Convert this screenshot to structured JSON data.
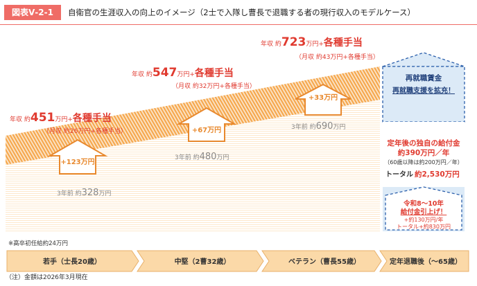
{
  "header": {
    "tag": "図表Ⅴ-2-1",
    "title": "自衛官の生涯収入の向上のイメージ（2士で入隊し曹長で退職する者の現行収入のモデルケース）"
  },
  "stages": [
    {
      "annual_prefix": "年収 約",
      "annual_value": "451",
      "annual_unit": "万円+",
      "allowance": "各種手当",
      "monthly": "（月収 約26万円+各種手当）",
      "increase": "+123万円",
      "prev_label": "3年前 約",
      "prev_value": "328",
      "prev_unit": "万円"
    },
    {
      "annual_prefix": "年収 約",
      "annual_value": "547",
      "annual_unit": "万円+",
      "allowance": "各種手当",
      "monthly": "（月収 約32万円+各種手当）",
      "increase": "+67万円",
      "prev_label": "3年前 約",
      "prev_value": "480",
      "prev_unit": "万円"
    },
    {
      "annual_prefix": "年収 約",
      "annual_value": "723",
      "annual_unit": "万円+",
      "allowance": "各種手当",
      "monthly": "（月収 約43万円+各種手当）",
      "increase": "+33万円",
      "prev_label": "3年前 約",
      "prev_value": "690",
      "prev_unit": "万円"
    }
  ],
  "retire_panel": {
    "line1": "再就職賃金",
    "line2": "再就職支援を拡充！",
    "benefit_title": "定年後の独自の給付金",
    "benefit_amount": "約390万円／年",
    "benefit_sub": "（60歳以降は約200万円／年）",
    "total_label": "トータル",
    "total_value": "約2,530万円",
    "reiwa_line1": "令和8～10年",
    "reiwa_line2": "給付金引上げ！",
    "reiwa_line3": "+約130万円/年",
    "reiwa_line4": "トータル+約830万円"
  },
  "start_note": "※高卒初任給約24万円",
  "timeline": [
    "若手（士長20歳）",
    "中堅（2曹32歳）",
    "ベテラン（曹長55歳）",
    "定年退職後（～65歳）"
  ],
  "footnote": "（注）金額は2026年3月現在",
  "colors": {
    "accent": "#ef6c66",
    "red_text": "#e03a2f",
    "orange": "#f5a64a",
    "orange_dark": "#e8892e",
    "blue": "#2b5fab",
    "light_blue": "#dceaf7"
  }
}
